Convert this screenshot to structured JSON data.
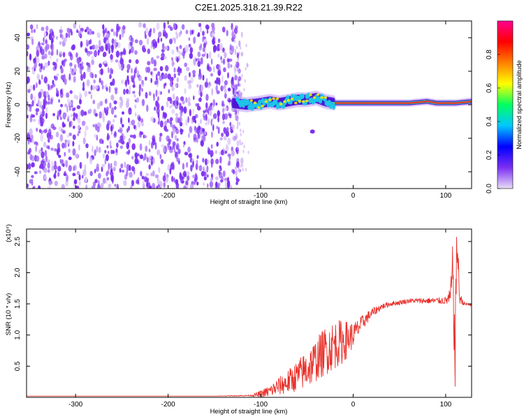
{
  "title": "C2E1.2025.318.21.39.R22",
  "colors": {
    "snr_line": "#e8302a",
    "scatter_main": "#7b2ff2",
    "scatter_light": "#c9a9f5",
    "band_core": "#1eeaa4",
    "band_peak": "#e8302a"
  },
  "chart_data": [
    {
      "type": "heatmap",
      "title": "C2E1.2025.318.21.39.R22",
      "xlabel": "Height of straight line (km)",
      "ylabel": "Frequency (Hz)",
      "xlim": [
        -353,
        128
      ],
      "ylim": [
        -50,
        50
      ],
      "xticks": [
        -300,
        -200,
        -100,
        0,
        100
      ],
      "yticks": [
        -40,
        -20,
        0,
        20,
        40
      ],
      "colorbar": {
        "label": "Normalized spectral amplitude",
        "range": [
          0,
          1
        ],
        "ticks": [
          0.0,
          0.2,
          0.4,
          0.6,
          0.8
        ],
        "tick_labels": [
          "0.0",
          "0.2",
          "0.4",
          "0.6",
          "0.8"
        ],
        "colormap": [
          "#e8ddf7",
          "#7b2ff2",
          "#0000ff",
          "#00c8ff",
          "#00ff60",
          "#ffff00",
          "#ff8000",
          "#ff0000",
          "#ff0090"
        ]
      },
      "regions": {
        "broadband_noise": {
          "x_range": [
            -353,
            -128
          ],
          "freq_range": [
            -50,
            48
          ]
        },
        "signal_band": {
          "x": [
            -130,
            -115,
            -100,
            -90,
            -80,
            -70,
            -60,
            -50,
            -40,
            -30,
            -20,
            0,
            20,
            40,
            60,
            80,
            90,
            100,
            110,
            128
          ],
          "freq": [
            1,
            0,
            1,
            2,
            1,
            2,
            3,
            3,
            4,
            2,
            1,
            1,
            1,
            1,
            1,
            2,
            1,
            1,
            1,
            2
          ]
        }
      }
    },
    {
      "type": "line",
      "xlabel": "Height of straight line (km)",
      "ylabel": "SNR (10 * v/v)",
      "y_multiplier": "(x10⁴)",
      "xlim": [
        -353,
        128
      ],
      "ylim": [
        0,
        2.7
      ],
      "xticks": [
        -300,
        -200,
        -100,
        0,
        100
      ],
      "yticks": [
        0.5,
        1.0,
        1.5,
        2.0,
        2.5
      ],
      "ytick_labels": [
        "0.5",
        "1.0",
        "1.5",
        "2.0",
        "2.5"
      ],
      "series": [
        {
          "x": [
            -353,
            -300,
            -250,
            -200,
            -150,
            -110,
            -100,
            -90,
            -80,
            -70,
            -60,
            -50,
            -40,
            -30,
            -20,
            -10,
            0,
            10,
            20,
            30,
            40,
            50,
            60,
            70,
            80,
            90,
            100,
            105,
            108,
            110,
            112,
            115,
            120,
            128
          ],
          "y": [
            0.02,
            0.02,
            0.02,
            0.02,
            0.02,
            0.03,
            0.05,
            0.1,
            0.18,
            0.25,
            0.35,
            0.45,
            0.6,
            0.75,
            0.85,
            0.9,
            1.0,
            1.2,
            1.35,
            1.45,
            1.5,
            1.52,
            1.55,
            1.55,
            1.55,
            1.55,
            1.55,
            1.6,
            2.1,
            0.4,
            2.6,
            1.6,
            1.5,
            1.48
          ],
          "spread": [
            0,
            0,
            0,
            0,
            0,
            0.01,
            0.06,
            0.1,
            0.15,
            0.2,
            0.25,
            0.32,
            0.35,
            0.4,
            0.4,
            0.35,
            0.2,
            0.12,
            0.08,
            0.05,
            0.04,
            0.04,
            0.04,
            0.04,
            0.05,
            0.05,
            0.06,
            0.15,
            0.5,
            0.6,
            0.5,
            0.1,
            0.03,
            0.02
          ]
        }
      ]
    }
  ]
}
